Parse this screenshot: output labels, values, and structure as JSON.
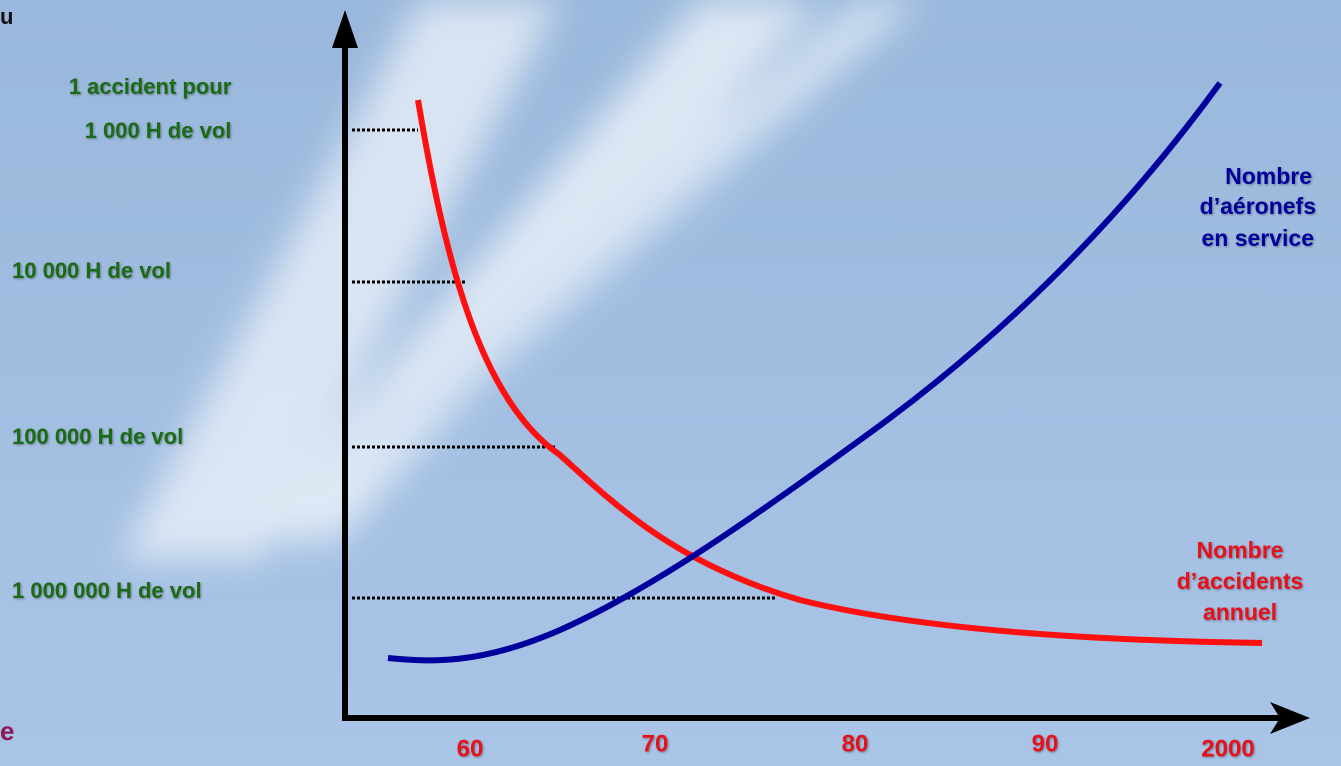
{
  "fragments": {
    "top_left": "u",
    "bottom_left": "e"
  },
  "y_labels": [
    [
      "1 accident pour",
      "1 000 H de vol"
    ],
    [
      "10 000 H de vol"
    ],
    [
      "100 000 H de vol"
    ],
    [
      "1 000 000 H de vol"
    ]
  ],
  "x_labels": [
    "60",
    "70",
    "80",
    "90",
    "2000"
  ],
  "curves": [
    {
      "label": [
        "Nombre",
        "d’aéronefs",
        "en service"
      ]
    },
    {
      "label": [
        "Nombre",
        "d’accidents",
        "annuel"
      ]
    }
  ]
}
